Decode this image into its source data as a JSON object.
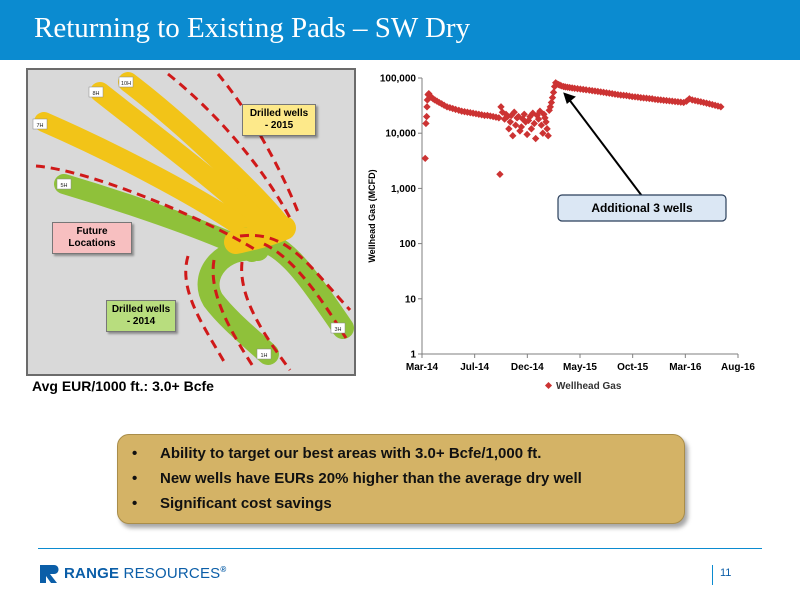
{
  "slide": {
    "title": "Returning to Existing Pads – SW Dry",
    "page_number": "11"
  },
  "map": {
    "labels": {
      "drilled_2015": "Drilled wells - 2015",
      "future": "Future Locations",
      "drilled_2014": "Drilled wells - 2014"
    },
    "well_tags": [
      "10H",
      "8H",
      "7H",
      "5H",
      "3H",
      "1H"
    ],
    "colors": {
      "drilled_2015": "#f2c418",
      "drilled_2014": "#8fc13a",
      "future": "#d01919",
      "future_label_bg": "#f7bfc0",
      "drilled_2014_label_bg": "#b8dd7e",
      "drilled_2015_label_bg": "#fde98a"
    }
  },
  "eur_caption": "Avg EUR/1000 ft.: 3.0+ Bcfe",
  "callout": {
    "text": "Additional 3 wells"
  },
  "bullets": [
    "Ability to target our best areas with 3.0+ Bcfe/1,000 ft.",
    "New wells have EURs 20% higher than the average dry well",
    "Significant cost savings"
  ],
  "footer": {
    "brand_bold": "RANGE",
    "brand_rest": "RESOURCES",
    "brand_mark": "®"
  },
  "chart_data": {
    "type": "scatter",
    "title": "",
    "xlabel": "",
    "ylabel": "Wellhead Gas (MCFD)",
    "yscale": "log",
    "ylim": [
      1,
      100000
    ],
    "xlim": [
      "2014-03-01",
      "2016-08-01"
    ],
    "x_ticks": [
      "Mar-14",
      "Jul-14",
      "Dec-14",
      "May-15",
      "Oct-15",
      "Mar-16",
      "Aug-16"
    ],
    "y_ticks": [
      "1",
      "10",
      "100",
      "1,000",
      "10,000",
      "100,000"
    ],
    "grid": false,
    "legend": "bottom",
    "marker_color": "#cc3333",
    "series": [
      {
        "name": "Wellhead Gas",
        "x": [
          "2014-03-10",
          "2014-03-12",
          "2014-03-14",
          "2014-03-15",
          "2014-03-16",
          "2014-03-18",
          "2014-03-20",
          "2014-03-23",
          "2014-03-27",
          "2014-04-01",
          "2014-04-06",
          "2014-04-12",
          "2014-04-18",
          "2014-04-25",
          "2014-05-02",
          "2014-05-10",
          "2014-05-18",
          "2014-05-26",
          "2014-06-03",
          "2014-06-12",
          "2014-06-20",
          "2014-06-28",
          "2014-07-06",
          "2014-07-14",
          "2014-07-22",
          "2014-07-30",
          "2014-08-07",
          "2014-08-15",
          "2014-08-23",
          "2014-08-31",
          "2014-09-08",
          "2014-09-16",
          "2014-09-24",
          "2014-10-02",
          "2014-10-05",
          "2014-10-08",
          "2014-10-12",
          "2014-10-18",
          "2014-10-22",
          "2014-10-26",
          "2014-10-30",
          "2014-11-03",
          "2014-11-06",
          "2014-11-10",
          "2014-11-14",
          "2014-11-18",
          "2014-11-22",
          "2014-11-26",
          "2014-11-30",
          "2014-12-04",
          "2014-12-08",
          "2014-12-12",
          "2014-12-16",
          "2014-12-20",
          "2014-12-24",
          "2014-12-28",
          "2015-01-01",
          "2015-01-05",
          "2015-01-09",
          "2015-01-13",
          "2015-01-17",
          "2015-01-21",
          "2015-01-25",
          "2015-01-29",
          "2015-02-02",
          "2015-02-05",
          "2015-02-08",
          "2015-02-11",
          "2015-02-14",
          "2015-02-17",
          "2015-02-20",
          "2015-02-23",
          "2015-02-26",
          "2015-03-01",
          "2015-03-04",
          "2015-03-07",
          "2015-03-10",
          "2015-03-14",
          "2015-03-18",
          "2015-03-22",
          "2015-03-26",
          "2015-04-01",
          "2015-04-06",
          "2015-04-12",
          "2015-04-18",
          "2015-04-25",
          "2015-05-02",
          "2015-05-10",
          "2015-05-18",
          "2015-05-26",
          "2015-06-03",
          "2015-06-12",
          "2015-06-20",
          "2015-06-28",
          "2015-07-06",
          "2015-07-14",
          "2015-07-22",
          "2015-07-30",
          "2015-08-07",
          "2015-08-15",
          "2015-08-23",
          "2015-08-31",
          "2015-09-08",
          "2015-09-16",
          "2015-09-24",
          "2015-10-02",
          "2015-10-10",
          "2015-10-18",
          "2015-10-26",
          "2015-11-03",
          "2015-11-11",
          "2015-11-19",
          "2015-11-27",
          "2015-12-05",
          "2015-12-13",
          "2015-12-21",
          "2015-12-29",
          "2016-01-06",
          "2016-01-14",
          "2016-01-22",
          "2016-01-30",
          "2016-02-07",
          "2016-02-15",
          "2016-02-23",
          "2016-03-02",
          "2016-03-10",
          "2016-03-18",
          "2016-03-26",
          "2016-04-03",
          "2016-04-11",
          "2016-04-19",
          "2016-04-27",
          "2016-05-05",
          "2016-05-13",
          "2016-05-21",
          "2016-05-29",
          "2016-06-06",
          "2016-06-14"
        ],
        "y": [
          3500,
          15000,
          20000,
          30000,
          40000,
          50000,
          52000,
          48000,
          45000,
          42000,
          40000,
          38000,
          36000,
          34000,
          32000,
          30000,
          29000,
          28000,
          27000,
          26000,
          25000,
          24500,
          24000,
          23500,
          23000,
          22500,
          22000,
          21500,
          21000,
          21000,
          20500,
          20000,
          19500,
          19000,
          1800,
          30000,
          24000,
          18000,
          22000,
          20000,
          12000,
          16000,
          21000,
          9000,
          24000,
          14000,
          19000,
          20000,
          11000,
          13000,
          18000,
          22000,
          16000,
          9500,
          17000,
          20000,
          12000,
          23000,
          15000,
          8000,
          21000,
          18000,
          25000,
          14000,
          10000,
          22000,
          19000,
          16000,
          12000,
          9000,
          26000,
          30000,
          36000,
          44000,
          55000,
          70000,
          82000,
          78000,
          76000,
          74000,
          72000,
          70000,
          69000,
          68000,
          67000,
          66000,
          65000,
          64000,
          63000,
          62000,
          61000,
          60000,
          59000,
          58000,
          57000,
          56000,
          55000,
          54000,
          53000,
          52000,
          51000,
          50000,
          49000,
          48500,
          48000,
          47000,
          46000,
          45500,
          45000,
          44000,
          43500,
          43000,
          42500,
          42000,
          41000,
          40500,
          40000,
          39500,
          39000,
          38500,
          38000,
          37500,
          37000,
          36500,
          36000,
          38000,
          42000,
          40000,
          39000,
          38000,
          37000,
          36000,
          35000,
          34000,
          33000,
          32000,
          31000,
          30000
        ]
      }
    ]
  }
}
